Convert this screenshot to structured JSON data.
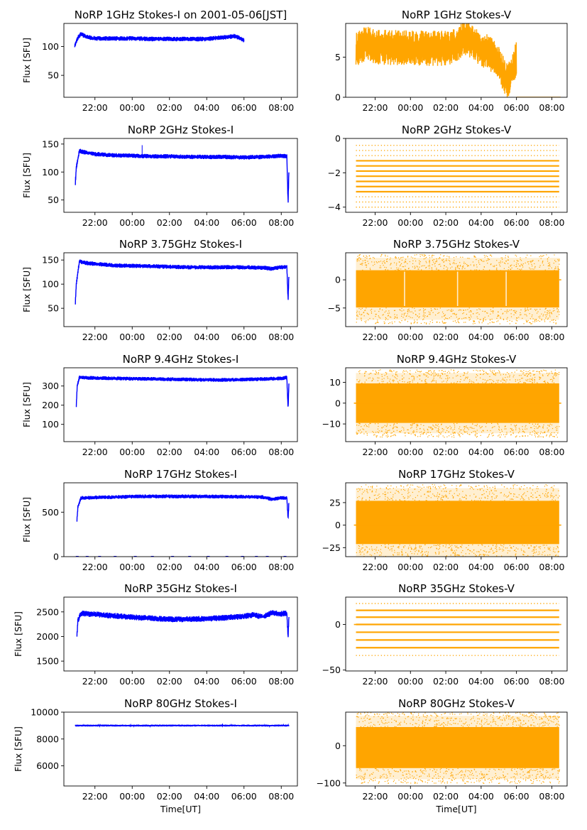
{
  "figure": {
    "background": "#ffffff",
    "stokes_i_color": "#0000ff",
    "stokes_v_color": "#ffa500"
  },
  "chart_data": [
    {
      "type": "line",
      "title": "NoRP 1GHz Stokes-I on 2001-05-06[JST]",
      "ylabel": "Flux [SFU]",
      "xlabel": "",
      "color": "#0000ff",
      "xlim": [
        "20:20",
        "08:52"
      ],
      "ylim": [
        12,
        140
      ],
      "xticks": [
        "22:00",
        "00:00",
        "02:00",
        "04:00",
        "06:00",
        "08:00"
      ],
      "yticks": [
        {
          "v": 50,
          "label": "50"
        },
        {
          "v": 100,
          "label": "100"
        }
      ],
      "data_extent": [
        "20:55",
        "06:00"
      ],
      "series": [
        {
          "x": [
            "20:55",
            "21:05",
            "21:15",
            "21:30",
            "22:00",
            "23:00",
            "00:00",
            "01:00",
            "02:00",
            "03:00",
            "04:00",
            "04:30",
            "05:00",
            "05:30",
            "06:00"
          ],
          "y": [
            102,
            115,
            122,
            117,
            114,
            114,
            114,
            113,
            113,
            113,
            113,
            115,
            116,
            118,
            111
          ],
          "band": 4
        }
      ]
    },
    {
      "type": "line",
      "title": "NoRP 1GHz Stokes-V",
      "ylabel": "",
      "xlabel": "",
      "color": "#ffa500",
      "xlim": [
        "20:20",
        "08:52"
      ],
      "ylim": [
        0,
        9.2
      ],
      "xticks": [
        "22:00",
        "00:00",
        "02:00",
        "04:00",
        "06:00",
        "08:00"
      ],
      "yticks": [
        {
          "v": 0,
          "label": "0"
        },
        {
          "v": 5,
          "label": "5"
        }
      ],
      "data_extent": [
        "20:55",
        "06:00"
      ],
      "series": [
        {
          "x": [
            "20:55",
            "21:30",
            "22:00",
            "23:00",
            "00:00",
            "01:00",
            "02:00",
            "02:40",
            "03:00",
            "03:30",
            "04:00",
            "04:30",
            "05:00",
            "05:30",
            "05:40",
            "06:00"
          ],
          "y": [
            5.9,
            6.7,
            6.3,
            6.2,
            6.2,
            6.1,
            6.1,
            6.4,
            7.6,
            6.9,
            6.0,
            5.5,
            4.2,
            1.8,
            2.8,
            5.0
          ],
          "band": 2.2
        }
      ],
      "baseline": {
        "from": "06:00",
        "to": "08:30",
        "y": 0
      }
    },
    {
      "type": "line",
      "title": "NoRP 2GHz Stokes-I",
      "ylabel": "Flux [SFU]",
      "xlabel": "",
      "color": "#0000ff",
      "xlim": [
        "20:20",
        "08:52"
      ],
      "ylim": [
        28,
        160
      ],
      "xticks": [
        "22:00",
        "00:00",
        "02:00",
        "04:00",
        "06:00",
        "08:00"
      ],
      "yticks": [
        {
          "v": 50,
          "label": "50"
        },
        {
          "v": 100,
          "label": "100"
        },
        {
          "v": 150,
          "label": "150"
        }
      ],
      "data_extent": [
        "20:57",
        "08:25"
      ],
      "series": [
        {
          "x": [
            "20:57",
            "21:00",
            "21:10",
            "21:20",
            "22:00",
            "23:00",
            "00:00",
            "01:00",
            "02:00",
            "03:00",
            "04:00",
            "05:00",
            "06:00",
            "07:00",
            "08:00",
            "08:18",
            "08:22",
            "08:25"
          ],
          "y": [
            80,
            108,
            138,
            136,
            132,
            130,
            129,
            128,
            128,
            127,
            127,
            127,
            126,
            127,
            129,
            128,
            45,
            110
          ],
          "band": 4
        }
      ],
      "spikes": [
        {
          "x": "00:32",
          "y": 148
        }
      ]
    },
    {
      "type": "scatter",
      "title": "NoRP 2GHz Stokes-V",
      "ylabel": "",
      "xlabel": "",
      "color": "#ffa500",
      "xlim": [
        "20:20",
        "08:52"
      ],
      "ylim": [
        -4.3,
        0
      ],
      "xticks": [
        "22:00",
        "00:00",
        "02:00",
        "04:00",
        "06:00",
        "08:00"
      ],
      "yticks": [
        {
          "v": -4,
          "label": "−4"
        },
        {
          "v": -2,
          "label": "−2"
        },
        {
          "v": 0,
          "label": "0"
        }
      ],
      "data_extent": [
        "20:55",
        "08:25"
      ],
      "levels": [
        -1.3,
        -1.6,
        -1.9,
        -2.2,
        -2.5,
        -2.8,
        -3.1
      ],
      "sparse_levels": [
        -0.4,
        -0.7,
        -1.0,
        -3.4,
        -3.7,
        -4.0
      ]
    },
    {
      "type": "line",
      "title": "NoRP 3.75GHz Stokes-I",
      "ylabel": "Flux [SFU]",
      "xlabel": "",
      "color": "#0000ff",
      "xlim": [
        "20:20",
        "08:52"
      ],
      "ylim": [
        12,
        165
      ],
      "xticks": [
        "22:00",
        "00:00",
        "02:00",
        "04:00",
        "06:00",
        "08:00"
      ],
      "yticks": [
        {
          "v": 50,
          "label": "50"
        },
        {
          "v": 100,
          "label": "100"
        },
        {
          "v": 150,
          "label": "150"
        }
      ],
      "data_extent": [
        "20:57",
        "08:25"
      ],
      "series": [
        {
          "x": [
            "20:57",
            "21:00",
            "21:10",
            "21:30",
            "22:00",
            "23:00",
            "00:00",
            "01:00",
            "02:00",
            "03:00",
            "04:00",
            "05:00",
            "06:00",
            "07:00",
            "07:30",
            "08:00",
            "08:18",
            "08:22",
            "08:25"
          ],
          "y": [
            62,
            100,
            147,
            144,
            142,
            139,
            138,
            137,
            136,
            135,
            135,
            135,
            135,
            134,
            132,
            135,
            136,
            68,
            125
          ],
          "band": 4.5
        }
      ]
    },
    {
      "type": "scatter",
      "title": "NoRP 3.75GHz Stokes-V",
      "ylabel": "",
      "xlabel": "",
      "color": "#ffa500",
      "xlim": [
        "20:20",
        "08:52"
      ],
      "ylim": [
        -8.3,
        4.8
      ],
      "xticks": [
        "22:00",
        "00:00",
        "02:00",
        "04:00",
        "06:00",
        "08:00"
      ],
      "yticks": [
        {
          "v": -5,
          "label": "−5"
        },
        {
          "v": 0,
          "label": "0"
        }
      ],
      "data_extent": [
        "20:55",
        "08:25"
      ],
      "noise": {
        "center": -1.6,
        "core_half": 3.3,
        "tail_half": 5.5
      },
      "gaps": [
        "23:40",
        "02:40",
        "05:25"
      ],
      "baseline": {
        "from": "08:25",
        "to": "08:32",
        "y": 0
      }
    },
    {
      "type": "line",
      "title": "NoRP 9.4GHz Stokes-I",
      "ylabel": "Flux [SFU]",
      "xlabel": "",
      "color": "#0000ff",
      "xlim": [
        "20:20",
        "08:52"
      ],
      "ylim": [
        10,
        395
      ],
      "xticks": [
        "22:00",
        "00:00",
        "02:00",
        "04:00",
        "06:00",
        "08:00"
      ],
      "yticks": [
        {
          "v": 100,
          "label": "100"
        },
        {
          "v": 200,
          "label": "200"
        },
        {
          "v": 300,
          "label": "300"
        }
      ],
      "data_extent": [
        "21:00",
        "08:25"
      ],
      "series": [
        {
          "x": [
            "21:00",
            "21:03",
            "21:10",
            "21:30",
            "22:00",
            "23:00",
            "00:00",
            "01:00",
            "02:00",
            "03:00",
            "04:00",
            "05:00",
            "06:00",
            "07:00",
            "08:00",
            "08:18",
            "08:22",
            "08:25"
          ],
          "y": [
            200,
            300,
            345,
            343,
            342,
            340,
            338,
            337,
            335,
            334,
            332,
            332,
            334,
            336,
            340,
            344,
            180,
            330
          ],
          "band": 10
        }
      ]
    },
    {
      "type": "scatter",
      "title": "NoRP 9.4GHz Stokes-V",
      "ylabel": "",
      "xlabel": "",
      "color": "#ffa500",
      "xlim": [
        "20:20",
        "08:52"
      ],
      "ylim": [
        -18.5,
        17
      ],
      "xticks": [
        "22:00",
        "00:00",
        "02:00",
        "04:00",
        "06:00",
        "08:00"
      ],
      "yticks": [
        {
          "v": -10,
          "label": "−10"
        },
        {
          "v": 0,
          "label": "0"
        },
        {
          "v": 10,
          "label": "10"
        }
      ],
      "data_extent": [
        "20:55",
        "08:25"
      ],
      "noise": {
        "center": 0,
        "core_half": 9.5,
        "tail_half": 14.5
      },
      "baseline": {
        "from": "20:48",
        "to": "08:32",
        "y": 0
      }
    },
    {
      "type": "line",
      "title": "NoRP 17GHz Stokes-I",
      "ylabel": "Flux [SFU]",
      "xlabel": "",
      "color": "#0000ff",
      "xlim": [
        "20:20",
        "08:52"
      ],
      "ylim": [
        0,
        830
      ],
      "xticks": [
        "22:00",
        "00:00",
        "02:00",
        "04:00",
        "06:00",
        "08:00"
      ],
      "yticks": [
        {
          "v": 0,
          "label": "0"
        },
        {
          "v": 500,
          "label": "500"
        }
      ],
      "data_extent": [
        "21:02",
        "08:25"
      ],
      "series": [
        {
          "x": [
            "21:02",
            "21:05",
            "21:15",
            "22:00",
            "23:00",
            "00:00",
            "01:00",
            "02:00",
            "03:00",
            "04:00",
            "05:00",
            "06:00",
            "07:00",
            "07:30",
            "08:00",
            "08:18",
            "08:22",
            "08:25"
          ],
          "y": [
            400,
            560,
            660,
            665,
            670,
            675,
            678,
            678,
            677,
            676,
            675,
            673,
            670,
            645,
            660,
            662,
            420,
            640
          ],
          "band": 22
        }
      ],
      "zero_points": [
        "21:03",
        "21:35",
        "22:15",
        "23:05",
        "00:10",
        "01:05",
        "02:10",
        "03:05",
        "04:05",
        "05:05",
        "05:55",
        "06:40",
        "07:15",
        "08:12"
      ]
    },
    {
      "type": "scatter",
      "title": "NoRP 17GHz Stokes-V",
      "ylabel": "",
      "xlabel": "",
      "color": "#ffa500",
      "xlim": [
        "20:20",
        "08:52"
      ],
      "ylim": [
        -35,
        47
      ],
      "xticks": [
        "22:00",
        "00:00",
        "02:00",
        "04:00",
        "06:00",
        "08:00"
      ],
      "yticks": [
        {
          "v": -25,
          "label": "−25"
        },
        {
          "v": 0,
          "label": "0"
        },
        {
          "v": 25,
          "label": "25"
        }
      ],
      "data_extent": [
        "20:55",
        "08:25"
      ],
      "noise": {
        "center": 3,
        "core_half": 24,
        "tail_half": 38
      },
      "baseline": {
        "from": "20:48",
        "to": "08:32",
        "y": 0
      }
    },
    {
      "type": "line",
      "title": "NoRP 35GHz Stokes-I",
      "ylabel": "Flux [SFU]",
      "xlabel": "",
      "color": "#0000ff",
      "xlim": [
        "20:20",
        "08:52"
      ],
      "ylim": [
        1300,
        2800
      ],
      "xticks": [
        "22:00",
        "00:00",
        "02:00",
        "04:00",
        "06:00",
        "08:00"
      ],
      "yticks": [
        {
          "v": 1500,
          "label": "1500"
        },
        {
          "v": 2000,
          "label": "2000"
        },
        {
          "v": 2500,
          "label": "2500"
        }
      ],
      "data_extent": [
        "21:02",
        "08:25"
      ],
      "series": [
        {
          "x": [
            "21:02",
            "21:05",
            "21:15",
            "22:00",
            "23:00",
            "00:00",
            "01:00",
            "02:00",
            "03:00",
            "04:00",
            "05:00",
            "06:00",
            "06:30",
            "07:00",
            "07:30",
            "08:00",
            "08:18",
            "08:22",
            "08:25"
          ],
          "y": [
            2020,
            2320,
            2470,
            2450,
            2420,
            2390,
            2370,
            2350,
            2350,
            2360,
            2380,
            2410,
            2440,
            2400,
            2480,
            2460,
            2480,
            1970,
            2450
          ],
          "band": 60
        }
      ]
    },
    {
      "type": "scatter",
      "title": "NoRP 35GHz Stokes-V",
      "ylabel": "",
      "xlabel": "",
      "color": "#ffa500",
      "xlim": [
        "20:20",
        "08:52"
      ],
      "ylim": [
        -51,
        30
      ],
      "xticks": [
        "22:00",
        "00:00",
        "02:00",
        "04:00",
        "06:00",
        "08:00"
      ],
      "yticks": [
        {
          "v": -50,
          "label": "−50"
        },
        {
          "v": 0,
          "label": "0"
        }
      ],
      "data_extent": [
        "20:55",
        "08:25"
      ],
      "levels": [
        15.5,
        8,
        0,
        -8.5,
        -17,
        -25.5
      ],
      "sparse_levels": [
        23,
        -34
      ],
      "baseline": {
        "from": "20:48",
        "to": "08:32",
        "y": 0
      }
    },
    {
      "type": "line",
      "title": "NoRP 80GHz Stokes-I",
      "ylabel": "Flux [SFU]",
      "xlabel": "Time[UT]",
      "color": "#0000ff",
      "xlim": [
        "20:20",
        "08:52"
      ],
      "ylim": [
        4500,
        10000
      ],
      "xticks": [
        "22:00",
        "00:00",
        "02:00",
        "04:00",
        "06:00",
        "08:00"
      ],
      "yticks": [
        {
          "v": 6000,
          "label": "6000"
        },
        {
          "v": 8000,
          "label": "8000"
        },
        {
          "v": 10000,
          "label": "10000"
        }
      ],
      "data_extent": [
        "20:57",
        "08:25"
      ],
      "series": [
        {
          "x": [
            "20:57",
            "08:25"
          ],
          "y": [
            9000,
            9000
          ],
          "band": 70
        }
      ]
    },
    {
      "type": "scatter",
      "title": "NoRP 80GHz Stokes-V",
      "ylabel": "",
      "xlabel": "Time[UT]",
      "color": "#ffa500",
      "xlim": [
        "20:20",
        "08:52"
      ],
      "ylim": [
        -108,
        90
      ],
      "xticks": [
        "22:00",
        "00:00",
        "02:00",
        "04:00",
        "06:00",
        "08:00"
      ],
      "yticks": [
        {
          "v": -100,
          "label": "−100"
        },
        {
          "v": 0,
          "label": "0"
        }
      ],
      "data_extent": [
        "20:55",
        "08:25"
      ],
      "noise": {
        "center": -5,
        "core_half": 55,
        "tail_half": 85
      }
    }
  ]
}
